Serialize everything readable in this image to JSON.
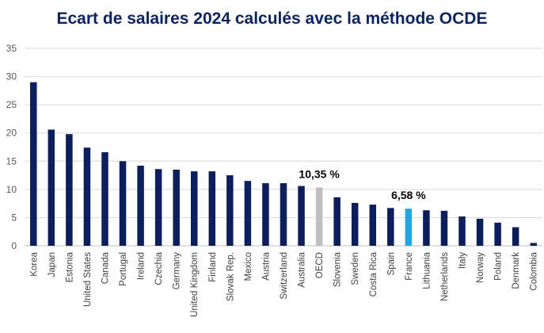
{
  "chart_data": {
    "type": "bar",
    "title": "Ecart de salaires 2024 calculés avec la méthode OCDE",
    "xlabel": "",
    "ylabel": "",
    "ylim": [
      0,
      35
    ],
    "yticks": [
      0,
      5,
      10,
      15,
      20,
      25,
      30,
      35
    ],
    "grid": true,
    "legend": "none",
    "categories": [
      "Korea",
      "Japan",
      "Estonia",
      "United States",
      "Canada",
      "Portugal",
      "Ireland",
      "Czechia",
      "Germany",
      "United Kingdom",
      "Finland",
      "Slovak Rep.",
      "Mexico",
      "Austria",
      "Switzerland",
      "Australia",
      "OECD",
      "Slovenia",
      "Sweden",
      "Costa Rica",
      "Spain",
      "France",
      "Lithuania",
      "Netherlands",
      "Italy",
      "Norway",
      "Poland",
      "Denmark",
      "Colombia"
    ],
    "values": [
      29.0,
      20.6,
      19.8,
      17.4,
      16.6,
      15.0,
      14.2,
      13.6,
      13.5,
      13.2,
      13.2,
      12.5,
      11.5,
      11.1,
      11.1,
      10.6,
      10.35,
      8.6,
      7.6,
      7.3,
      6.7,
      6.58,
      6.3,
      6.2,
      5.2,
      4.8,
      4.1,
      3.3,
      0.5
    ],
    "colors": {
      "default": "#0c1f5c",
      "OECD": "#bfbfbf",
      "France": "#1ea7e6",
      "grid": "#d9d9d9",
      "title": "#0c2461"
    },
    "annotations": [
      {
        "category": "OECD",
        "text": "10,35 %"
      },
      {
        "category": "France",
        "text": "6,58 %"
      }
    ]
  }
}
